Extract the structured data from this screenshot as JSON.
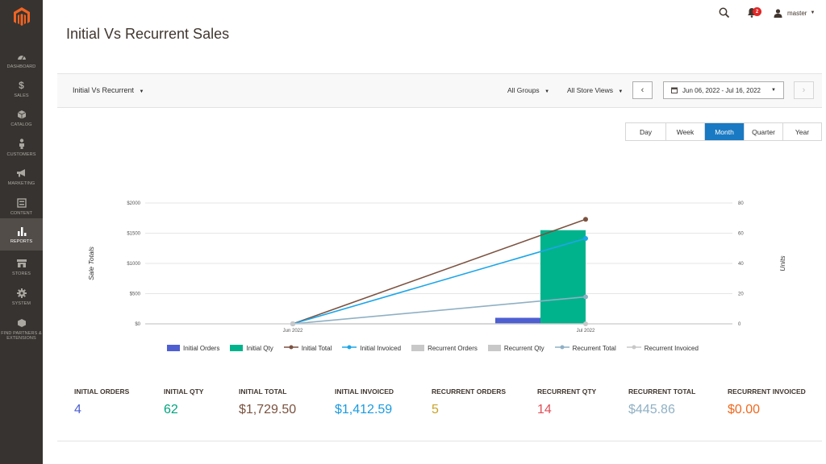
{
  "sidebar": {
    "items": [
      {
        "label": "Dashboard",
        "icon": "dashboard-icon"
      },
      {
        "label": "Sales",
        "icon": "dollar-icon"
      },
      {
        "label": "Catalog",
        "icon": "cube-icon"
      },
      {
        "label": "Customers",
        "icon": "person-icon"
      },
      {
        "label": "Marketing",
        "icon": "megaphone-icon"
      },
      {
        "label": "Content",
        "icon": "content-icon"
      },
      {
        "label": "Reports",
        "icon": "bar-chart-icon",
        "active": true
      },
      {
        "label": "Stores",
        "icon": "store-icon"
      },
      {
        "label": "System",
        "icon": "gear-icon"
      },
      {
        "label": "Find Partners & Extensions",
        "icon": "extensions-icon"
      }
    ]
  },
  "header": {
    "title": "Initial Vs Recurrent Sales",
    "notifications_count": "2",
    "user_name": "master"
  },
  "toolbar": {
    "report_type": "Initial Vs Recurrent",
    "groups_filter": "All Groups",
    "store_filter": "All Store Views",
    "prev_label": "‹",
    "next_label": "›",
    "date_range": "Jun 06, 2022 - Jul 16, 2022"
  },
  "period_tabs": [
    {
      "label": "Day"
    },
    {
      "label": "Week"
    },
    {
      "label": "Month",
      "active": true
    },
    {
      "label": "Quarter"
    },
    {
      "label": "Year"
    }
  ],
  "chart_data": {
    "type": "bar",
    "categories": [
      "Jun 2022",
      "Jul 2022"
    ],
    "xlabel": "",
    "ylabel": "Sale Totals",
    "y2label": "Units",
    "ylim": [
      0,
      2000
    ],
    "y2lim": [
      0,
      80
    ],
    "yticks": [
      "$0",
      "$500",
      "$1000",
      "$1500",
      "$2000"
    ],
    "y2ticks": [
      "0",
      "20",
      "40",
      "60",
      "80"
    ],
    "grid": true,
    "legend_position": "bottom",
    "series": [
      {
        "name": "Initial Orders",
        "kind": "bar",
        "axis": "units",
        "color": "#4d5fd1",
        "values": [
          0,
          4
        ]
      },
      {
        "name": "Initial Qty",
        "kind": "bar",
        "axis": "units",
        "color": "#00b38c",
        "values": [
          0,
          62
        ]
      },
      {
        "name": "Initial Total",
        "kind": "line",
        "axis": "sales",
        "color": "#7b5240",
        "values": [
          0,
          1729.5
        ]
      },
      {
        "name": "Initial Invoiced",
        "kind": "line",
        "axis": "sales",
        "color": "#1ea6e8",
        "values": [
          0,
          1412.59
        ]
      },
      {
        "name": "Recurrent Orders",
        "kind": "bar",
        "axis": "units",
        "color": "#c8c8c8",
        "values": [
          0,
          5
        ]
      },
      {
        "name": "Recurrent Qty",
        "kind": "bar",
        "axis": "units",
        "color": "#c8c8c8",
        "values": [
          0,
          14
        ]
      },
      {
        "name": "Recurrent Total",
        "kind": "line",
        "axis": "sales",
        "color": "#8fb0c4",
        "values": [
          0,
          445.86
        ]
      },
      {
        "name": "Recurrent Invoiced",
        "kind": "line",
        "axis": "sales",
        "color": "#c8c8c8",
        "values": [
          0,
          0
        ]
      }
    ]
  },
  "totals": [
    {
      "label": "Initial Orders",
      "value": "4",
      "color": "#4d5fd1"
    },
    {
      "label": "Initial Qty",
      "value": "62",
      "color": "#00a37f"
    },
    {
      "label": "Initial Total",
      "value": "$1,729.50",
      "color": "#7b5240"
    },
    {
      "label": "Initial Invoiced",
      "value": "$1,412.59",
      "color": "#1a9be0"
    },
    {
      "label": "Recurrent Orders",
      "value": "5",
      "color": "#c9a227"
    },
    {
      "label": "Recurrent Qty",
      "value": "14",
      "color": "#e0505a"
    },
    {
      "label": "Recurrent Total",
      "value": "$445.86",
      "color": "#8fb0c4"
    },
    {
      "label": "Recurrent Invoiced",
      "value": "$0.00",
      "color": "#f0681e"
    }
  ]
}
